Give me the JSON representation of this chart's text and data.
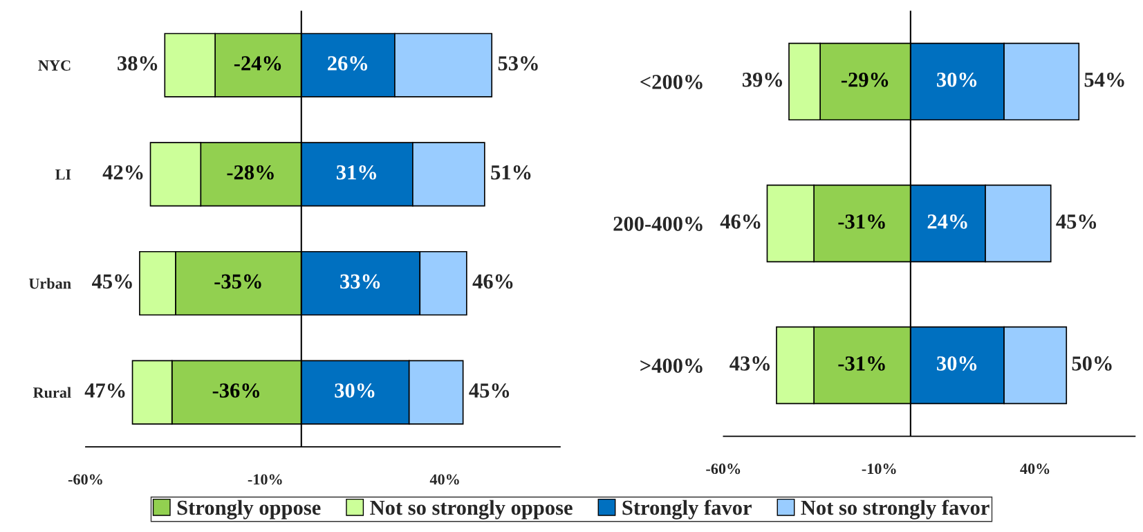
{
  "chart_data": [
    {
      "type": "bar",
      "orientation": "horizontal",
      "stacked": true,
      "categories": [
        "NYC",
        "LI",
        "Urban",
        "Rural"
      ],
      "series": [
        {
          "name": "Strongly oppose",
          "color": "#92d050",
          "values": [
            -24,
            -28,
            -35,
            -36
          ],
          "value_labels": [
            "-24%",
            "-28%",
            "-35%",
            "-36%"
          ]
        },
        {
          "name": "Not so strongly oppose",
          "color": "#ccff99",
          "values": [
            -14,
            -14,
            -10,
            -11
          ]
        },
        {
          "name": "Strongly favor",
          "color": "#0070c0",
          "values": [
            26,
            31,
            33,
            30
          ],
          "value_labels": [
            "26%",
            "31%",
            "33%",
            "30%"
          ]
        },
        {
          "name": "Not so strongly favor",
          "color": "#99ccff",
          "values": [
            27,
            20,
            13,
            15
          ]
        }
      ],
      "totals": [
        [
          "38%",
          "53%"
        ],
        [
          "42%",
          "51%"
        ],
        [
          "45%",
          "46%"
        ],
        [
          "47%",
          "45%"
        ]
      ],
      "xlim": [
        -60,
        72
      ],
      "xticks": [
        {
          "value": -60,
          "label": "-60%"
        },
        {
          "value": -10,
          "label": "-10%"
        },
        {
          "value": 40,
          "label": "40%"
        }
      ],
      "ref_lines": [
        {
          "axis": "x",
          "value": 0,
          "color": "#000000"
        }
      ],
      "grid": false,
      "legend": "bottom"
    },
    {
      "type": "bar",
      "orientation": "horizontal",
      "stacked": true,
      "categories": [
        "<200%",
        "200-400%",
        ">400%"
      ],
      "series": [
        {
          "color": "#92d050",
          "values": [
            -29,
            -31,
            -31
          ],
          "value_labels": [
            "-29%",
            "-31%",
            "-31%"
          ]
        },
        {
          "color": "#ccff99",
          "values": [
            -10,
            -15,
            -12
          ]
        },
        {
          "color": "#0070c0",
          "values": [
            30,
            24,
            30
          ],
          "value_labels": [
            "30%",
            "24%",
            "30%"
          ]
        },
        {
          "color": "#99ccff",
          "values": [
            24,
            21,
            20
          ]
        }
      ],
      "totals": [
        [
          "39%",
          "54%"
        ],
        [
          "46%",
          "45%"
        ],
        [
          "43%",
          "50%"
        ]
      ],
      "xlim": [
        -60,
        72
      ],
      "xticks": [
        {
          "value": -60,
          "label": "-60%"
        },
        {
          "value": -10,
          "label": "-10%"
        },
        {
          "value": 40,
          "label": "40%"
        }
      ],
      "ref_lines": [
        {
          "axis": "x",
          "value": 0,
          "color": "#000000"
        }
      ],
      "grid": false,
      "legend": false
    }
  ]
}
